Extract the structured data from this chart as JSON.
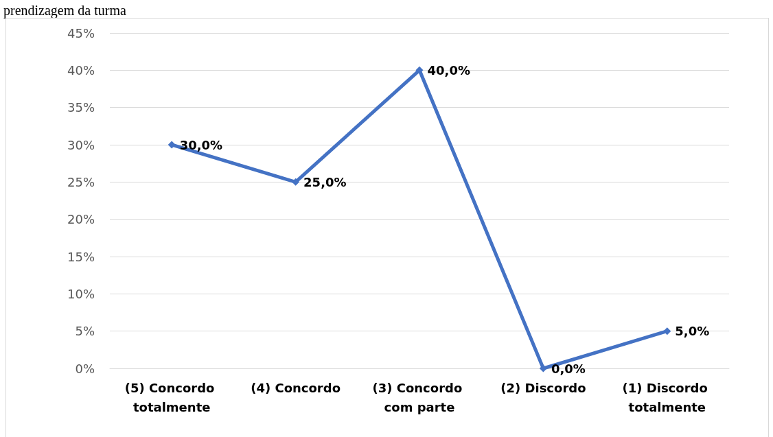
{
  "chart_data": {
    "type": "line",
    "title": "prendizagem da turma",
    "categories": [
      "(5) Concordo totalmente",
      "(4) Concordo",
      "(3) Concordo com parte",
      "(2) Discordo",
      "(1) Discordo totalmente"
    ],
    "series": [
      {
        "color": "#4472c4",
        "values": [
          30,
          25,
          40,
          0,
          5
        ],
        "value_labels": [
          "30,0%",
          "25,0%",
          "40,0%",
          "0,0%",
          "5,0%"
        ]
      }
    ],
    "ylim": [
      0,
      45
    ],
    "yticks": [
      {
        "value": 0,
        "label": "0%"
      },
      {
        "value": 5,
        "label": "5%"
      },
      {
        "value": 10,
        "label": "10%"
      },
      {
        "value": 15,
        "label": "15%"
      },
      {
        "value": 20,
        "label": "20%"
      },
      {
        "value": 25,
        "label": "25%"
      },
      {
        "value": 30,
        "label": "30%"
      },
      {
        "value": 35,
        "label": "35%"
      },
      {
        "value": 40,
        "label": "40%"
      },
      {
        "value": 45,
        "label": "45%"
      }
    ],
    "grid": "y",
    "marker": "diamond",
    "line_style": "solid"
  }
}
